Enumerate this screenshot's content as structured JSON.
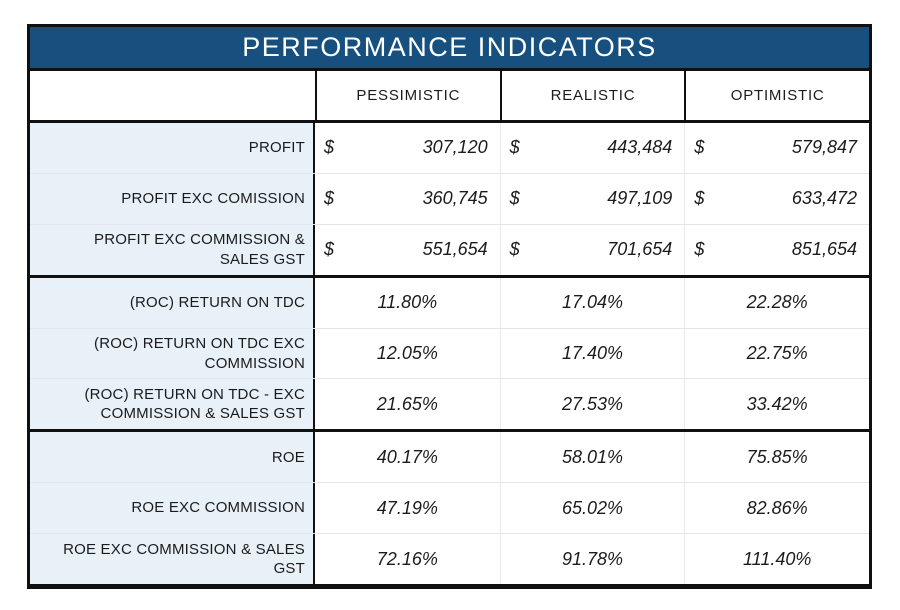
{
  "title": "PERFORMANCE INDICATORS",
  "columns": [
    "PESSIMISTIC",
    "REALISTIC",
    "OPTIMISTIC"
  ],
  "rows": [
    {
      "label": "PROFIT",
      "type": "currency",
      "symbol": "$",
      "values": [
        "307,120",
        "443,484",
        "579,847"
      ]
    },
    {
      "label": "PROFIT EXC COMISSION",
      "type": "currency",
      "symbol": "$",
      "values": [
        "360,745",
        "497,109",
        "633,472"
      ]
    },
    {
      "label": "PROFIT EXC COMMISSION & SALES GST",
      "type": "currency",
      "symbol": "$",
      "values": [
        "551,654",
        "701,654",
        "851,654"
      ]
    },
    {
      "label": "(ROC) RETURN ON TDC",
      "type": "percent",
      "values": [
        "11.80%",
        "17.04%",
        "22.28%"
      ]
    },
    {
      "label": "(ROC) RETURN ON TDC EXC COMMISSION",
      "type": "percent",
      "values": [
        "12.05%",
        "17.40%",
        "22.75%"
      ]
    },
    {
      "label": "(ROC) RETURN ON TDC - EXC COMMISSION & SALES GST",
      "type": "percent",
      "values": [
        "21.65%",
        "27.53%",
        "33.42%"
      ]
    },
    {
      "label": "ROE",
      "type": "percent",
      "values": [
        "40.17%",
        "58.01%",
        "75.85%"
      ]
    },
    {
      "label": "ROE EXC COMMISSION",
      "type": "percent",
      "values": [
        "47.19%",
        "65.02%",
        "82.86%"
      ]
    },
    {
      "label": "ROE EXC COMMISSION & SALES GST",
      "type": "percent",
      "values": [
        "72.16%",
        "91.78%",
        "111.40%"
      ]
    }
  ],
  "colors": {
    "header_bg": "#17507f",
    "header_text": "#ffffff",
    "label_bg": "#e8f1f8",
    "grid_black": "#101010",
    "row_divider": "#e3e6ea"
  }
}
